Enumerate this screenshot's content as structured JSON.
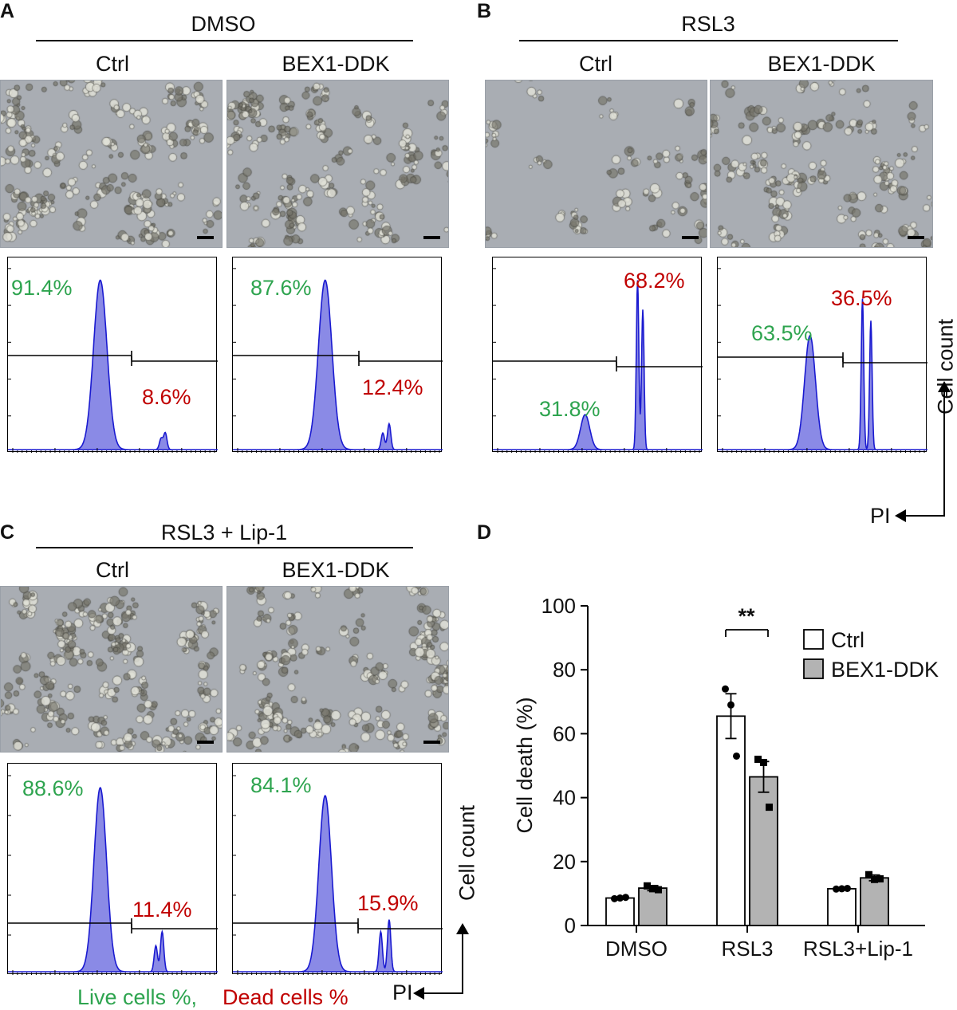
{
  "panels": {
    "A": {
      "letter": "A",
      "treatment": "DMSO",
      "ctrl_label": "Ctrl",
      "bex_label": "BEX1-DDK",
      "ctrl_live": "91.4%",
      "ctrl_dead": "8.6%",
      "bex_live": "87.6%",
      "bex_dead": "12.4%"
    },
    "B": {
      "letter": "B",
      "treatment": "RSL3",
      "ctrl_label": "Ctrl",
      "bex_label": "BEX1-DDK",
      "ctrl_live": "31.8%",
      "ctrl_dead": "68.2%",
      "bex_live": "63.5%",
      "bex_dead": "36.5%"
    },
    "C": {
      "letter": "C",
      "treatment": "RSL3 + Lip-1",
      "ctrl_label": "Ctrl",
      "bex_label": "BEX1-DDK",
      "ctrl_live": "88.6%",
      "ctrl_dead": "11.4%",
      "bex_live": "84.1%",
      "bex_dead": "15.9%"
    },
    "D": {
      "letter": "D"
    }
  },
  "flow_axes": {
    "y_label": "Cell count",
    "x_label": "PI"
  },
  "caption": {
    "live": "Live cells %,",
    "dead": "Dead cells %"
  },
  "colors": {
    "live": "#2ea44f",
    "dead": "#c00000",
    "histogram_fill": "#8a8ae6",
    "histogram_line": "#1a1ad0",
    "bex_bar": "#b3b3b3"
  },
  "chart_data": {
    "type": "bar",
    "categories": [
      "DMSO",
      "RSL3",
      "RSL3+Lip-1"
    ],
    "series": [
      {
        "name": "Ctrl",
        "values": [
          8.6,
          65.5,
          11.5
        ],
        "sem": [
          0.3,
          7,
          0.3
        ],
        "points": [
          [
            8.4,
            8.6,
            8.8
          ],
          [
            74,
            69,
            53
          ],
          [
            11.4,
            11.5,
            11.6
          ]
        ]
      },
      {
        "name": "BEX1-DDK",
        "values": [
          11.7,
          46.5,
          14.9
        ],
        "sem": [
          0.8,
          4.8,
          0.9
        ],
        "points": [
          [
            12.4,
            11.5,
            11.2
          ],
          [
            52,
            51,
            37
          ],
          [
            15.9,
            14.4,
            14.6
          ]
        ]
      }
    ],
    "ylabel": "Cell death (%)",
    "ylim": [
      0,
      100
    ],
    "yticks": [
      0,
      20,
      40,
      60,
      80,
      100
    ],
    "annotation": "**",
    "legend": "top-right"
  }
}
